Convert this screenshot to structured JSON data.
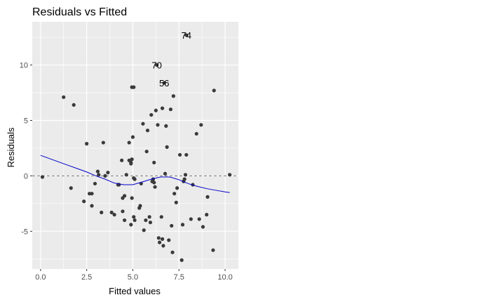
{
  "chart_data": {
    "type": "scatter",
    "title": "Residuals vs Fitted",
    "xlabel": "Fitted values",
    "ylabel": "Residuals",
    "xlim": [
      -0.45,
      10.72
    ],
    "ylim": [
      -8.4,
      13.9
    ],
    "x_ticks": [
      0.0,
      2.5,
      5.0,
      7.5,
      10.0
    ],
    "x_tick_labels": [
      "0.0",
      "2.5",
      "5.0",
      "7.5",
      "10.0"
    ],
    "y_ticks": [
      -5,
      0,
      5,
      10
    ],
    "y_tick_labels": [
      "-5",
      "0",
      "5",
      "10"
    ],
    "grid": true,
    "reference_line": {
      "y": 0,
      "style": "dashed"
    },
    "points": [
      [
        0.1,
        -0.1
      ],
      [
        1.25,
        7.1
      ],
      [
        1.8,
        6.4
      ],
      [
        1.65,
        -1.1
      ],
      [
        2.35,
        -2.3
      ],
      [
        2.5,
        2.9
      ],
      [
        2.65,
        -1.6
      ],
      [
        2.78,
        -1.6
      ],
      [
        2.78,
        -2.7
      ],
      [
        2.95,
        -0.7
      ],
      [
        3.1,
        0.4
      ],
      [
        3.15,
        0.1
      ],
      [
        3.3,
        -3.3
      ],
      [
        3.4,
        3.0
      ],
      [
        3.5,
        0.0
      ],
      [
        3.65,
        0.3
      ],
      [
        3.85,
        -3.3
      ],
      [
        4.0,
        -3.5
      ],
      [
        4.2,
        -0.8
      ],
      [
        4.25,
        -0.8
      ],
      [
        4.4,
        1.4
      ],
      [
        4.45,
        -2.0
      ],
      [
        4.55,
        -1.8
      ],
      [
        4.45,
        -3.2
      ],
      [
        4.55,
        -4.0
      ],
      [
        4.65,
        0.1
      ],
      [
        4.8,
        1.4
      ],
      [
        4.9,
        1.2
      ],
      [
        4.9,
        1.1
      ],
      [
        4.95,
        1.5
      ],
      [
        4.8,
        3.0
      ],
      [
        5.0,
        3.5
      ],
      [
        4.95,
        8.0
      ],
      [
        5.05,
        8.0
      ],
      [
        4.95,
        -2.0
      ],
      [
        4.9,
        -4.4
      ],
      [
        5.05,
        -3.7
      ],
      [
        5.1,
        -4.0
      ],
      [
        5.05,
        -0.2
      ],
      [
        5.1,
        -0.3
      ],
      [
        5.35,
        -2.9
      ],
      [
        5.4,
        -2.7
      ],
      [
        5.45,
        -0.7
      ],
      [
        5.55,
        4.7
      ],
      [
        5.6,
        -4.9
      ],
      [
        5.7,
        -4.0
      ],
      [
        5.75,
        2.2
      ],
      [
        5.8,
        4.1
      ],
      [
        5.9,
        -3.7
      ],
      [
        5.95,
        -4.2
      ],
      [
        6.0,
        5.5
      ],
      [
        6.05,
        -0.5
      ],
      [
        6.1,
        -0.3
      ],
      [
        6.15,
        -0.6
      ],
      [
        6.2,
        -1.0
      ],
      [
        6.15,
        1.2
      ],
      [
        6.25,
        5.9
      ],
      [
        6.35,
        4.6
      ],
      [
        6.4,
        -5.6
      ],
      [
        6.45,
        -6.0
      ],
      [
        6.55,
        -3.7
      ],
      [
        6.6,
        -5.7
      ],
      [
        6.6,
        6.1
      ],
      [
        6.65,
        -6.3
      ],
      [
        6.75,
        0.2
      ],
      [
        6.8,
        4.5
      ],
      [
        6.85,
        2.6
      ],
      [
        6.95,
        -5.8
      ],
      [
        7.05,
        6.0
      ],
      [
        7.1,
        -4.5
      ],
      [
        7.15,
        -6.9
      ],
      [
        7.2,
        7.2
      ],
      [
        7.25,
        -1.6
      ],
      [
        7.35,
        -2.4
      ],
      [
        7.4,
        -1.1
      ],
      [
        7.55,
        1.9
      ],
      [
        7.65,
        -7.6
      ],
      [
        7.7,
        -4.4
      ],
      [
        7.75,
        -0.5
      ],
      [
        7.8,
        -0.3
      ],
      [
        7.85,
        0.1
      ],
      [
        7.9,
        1.9
      ],
      [
        8.15,
        -3.9
      ],
      [
        8.25,
        -0.8
      ],
      [
        8.45,
        3.8
      ],
      [
        8.6,
        -3.9
      ],
      [
        8.7,
        4.6
      ],
      [
        8.8,
        -4.6
      ],
      [
        9.0,
        -3.5
      ],
      [
        9.05,
        -1.9
      ],
      [
        9.35,
        -6.7
      ],
      [
        9.4,
        7.7
      ],
      [
        10.25,
        0.1
      ],
      [
        6.7,
        8.4
      ],
      [
        6.3,
        10.0
      ],
      [
        7.9,
        12.7
      ]
    ],
    "labeled_points": [
      {
        "label": "74",
        "x": 7.9,
        "y": 12.7
      },
      {
        "label": "70",
        "x": 6.3,
        "y": 10.0
      },
      {
        "label": "56",
        "x": 6.7,
        "y": 8.4
      }
    ],
    "smooth_line": {
      "x": [
        0.0,
        0.5,
        1.0,
        1.5,
        2.0,
        2.5,
        3.0,
        3.5,
        4.0,
        4.5,
        5.0,
        5.5,
        6.0,
        6.5,
        7.0,
        7.5,
        8.0,
        8.5,
        9.0,
        9.5,
        10.0,
        10.25
      ],
      "y": [
        1.85,
        1.55,
        1.25,
        0.95,
        0.65,
        0.35,
        0.0,
        -0.3,
        -0.65,
        -0.8,
        -0.8,
        -0.55,
        -0.3,
        -0.1,
        -0.1,
        -0.35,
        -0.7,
        -0.95,
        -1.15,
        -1.3,
        -1.45,
        -1.5
      ]
    },
    "colors": {
      "panel": "#ebebeb",
      "grid_major": "#ffffff",
      "point": "#3a3a3a",
      "smooth": "#0000cc",
      "reference": "#777777"
    }
  }
}
